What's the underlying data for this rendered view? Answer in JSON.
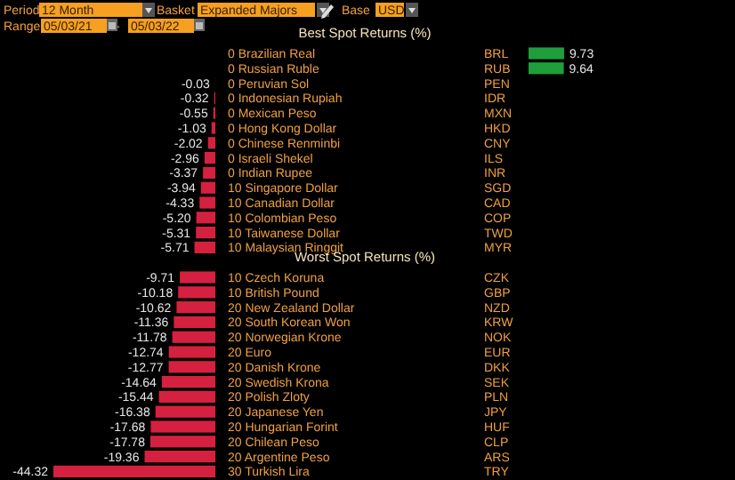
{
  "chart_data": [
    {
      "type": "bar",
      "orientation": "horizontal",
      "title": "Best Spot Returns (%)",
      "annotations": [
        "Period",
        "12 Month",
        "Basket",
        "Expanded Majors",
        "Base",
        "USD",
        "Range",
        "05/03/21",
        "-",
        "05/03/22",
        "BRL",
        "RUB",
        "PEN",
        "IDR",
        "MXN",
        "HKD",
        "CNY",
        "ILS",
        "INR",
        "SGD",
        "CAD",
        "COP",
        "TWD",
        "MYR"
      ],
      "categories": [
        "0 Brazilian Real",
        "0 Russian Ruble",
        "0 Peruvian Sol",
        "0 Indonesian Rupiah",
        "0 Mexican Peso",
        "0 Hong Kong Dollar",
        "0 Chinese Renminbi",
        "0 Israeli Shekel",
        "0 Indian Rupee",
        "10 Singapore Dollar",
        "10 Canadian Dollar",
        "10 Colombian Peso",
        "10 Taiwanese Dollar",
        "10 Malaysian Ringgit"
      ],
      "values": [
        null,
        null,
        -0.03,
        -0.32,
        -0.55,
        -1.03,
        -2.02,
        -2.96,
        -3.37,
        -3.94,
        -4.33,
        -5.2,
        -5.31,
        -5.71
      ],
      "value_labels": [
        null,
        null,
        "-0.03",
        "-0.32",
        "-0.55",
        "-1.03",
        "-2.02",
        "-2.96",
        "-3.37",
        "-3.94",
        "-4.33",
        "-5.20",
        "-5.31",
        "-5.71"
      ],
      "color": "#d6203f"
    },
    {
      "type": "bar",
      "orientation": "horizontal",
      "categories": [
        null,
        null
      ],
      "values": [
        9.73,
        9.64
      ],
      "value_labels": [
        "9.73",
        "9.64"
      ],
      "color": "#1f9e3c"
    },
    {
      "type": "bar",
      "orientation": "horizontal",
      "title": "Worst Spot Returns (%)",
      "annotations": [
        "CZK",
        "GBP",
        "NZD",
        "KRW",
        "NOK",
        "EUR",
        "DKK",
        "SEK",
        "PLN",
        "JPY",
        "HUF",
        "CLP",
        "ARS",
        "TRY"
      ],
      "categories": [
        "10 Czech Koruna",
        "10 British Pound",
        "20 New Zealand Dollar",
        "20 South Korean Won",
        "20 Norwegian Krone",
        "20 Euro",
        "20 Danish Krone",
        "20 Swedish Krona",
        "20 Polish Zloty",
        "20 Japanese Yen",
        "20 Hungarian Forint",
        "20 Chilean Peso",
        "20 Argentine Peso",
        "30 Turkish Lira"
      ],
      "values": [
        -9.71,
        -10.18,
        -10.62,
        -11.36,
        -11.78,
        -12.74,
        -12.77,
        -14.64,
        -15.44,
        -16.38,
        -17.68,
        -17.78,
        -19.36,
        -44.32
      ],
      "value_labels": [
        "-9.71",
        "-10.18",
        "-10.62",
        "-11.36",
        "-11.78",
        "-12.74",
        "-12.77",
        "-14.64",
        "-15.44",
        "-16.38",
        "-17.68",
        "-17.78",
        "-19.36",
        "-44.32"
      ],
      "color": "#d6203f"
    }
  ]
}
